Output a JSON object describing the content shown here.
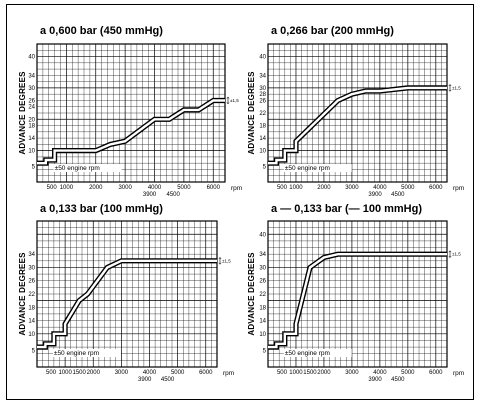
{
  "chart_data": [
    {
      "type": "line",
      "title": "a 0,600 bar (450 mmHg)",
      "ylabel": "ADVANCE DEGREES",
      "xlabel": "rpm",
      "y_ticks": [
        "5",
        "10",
        "14",
        "18",
        "20",
        "24",
        "26",
        "30",
        "34",
        "40"
      ],
      "x_ticks": [
        "500",
        "1000",
        "2000",
        "3000",
        "4000",
        "5000",
        "6000"
      ],
      "x_subticks": [
        "3900",
        "4500"
      ],
      "note": "±50 engine rpm",
      "tolerance": "±1,5",
      "xlim": [
        0,
        6400
      ],
      "ylim": [
        0,
        44
      ],
      "x": [
        0,
        300,
        300,
        600,
        600,
        1000,
        2000,
        2500,
        3000,
        4000,
        4500,
        5000,
        5500,
        6000,
        6400
      ],
      "y": [
        6,
        6,
        7,
        7,
        10,
        10,
        10,
        12,
        13,
        20,
        20,
        23,
        23,
        26,
        26
      ]
    },
    {
      "type": "line",
      "title": "a 0,266 bar (200 mmHg)",
      "ylabel": "ADVANCE DEGREES",
      "xlabel": "rpm",
      "y_ticks": [
        "5",
        "10",
        "14",
        "18",
        "22",
        "26",
        "28",
        "30",
        "34",
        "40"
      ],
      "x_ticks": [
        "500",
        "1000",
        "2000",
        "3000",
        "4000",
        "5000",
        "6000"
      ],
      "x_subticks": [
        "3900",
        "4500"
      ],
      "note": "±50 engine rpm",
      "tolerance": "±1,5",
      "xlim": [
        0,
        6400
      ],
      "ylim": [
        0,
        44
      ],
      "x": [
        0,
        300,
        300,
        600,
        600,
        1000,
        1000,
        2500,
        3000,
        3500,
        4000,
        5000,
        6000,
        6400
      ],
      "y": [
        6,
        6,
        7,
        7,
        10,
        10,
        13,
        26,
        28,
        29,
        29,
        30,
        30,
        30
      ]
    },
    {
      "type": "line",
      "title": "a 0,133 bar (100 mmHg)",
      "ylabel": "ADVANCE DEGREES",
      "xlabel": "rpm",
      "y_ticks": [
        "5",
        "10",
        "14",
        "18",
        "22",
        "26",
        "30",
        "34"
      ],
      "x_ticks": [
        "500",
        "1000",
        "1500",
        "2000",
        "3000",
        "4000",
        "5000",
        "6000"
      ],
      "x_subticks": [
        "3900",
        "4500"
      ],
      "note": "±50 engine rpm",
      "tolerance": "±1,5",
      "xlim": [
        0,
        6400
      ],
      "ylim": [
        0,
        44
      ],
      "x": [
        0,
        300,
        300,
        600,
        600,
        1000,
        1000,
        1500,
        1800,
        2500,
        3000,
        4000,
        5000,
        6000,
        6400
      ],
      "y": [
        6,
        6,
        7,
        7,
        10,
        10,
        13,
        20,
        22,
        30,
        32,
        32,
        32,
        32,
        32
      ]
    },
    {
      "type": "line",
      "title": "a — 0,133 bar (— 100 mmHg)",
      "ylabel": "ADVANCE DEGREES",
      "xlabel": "rpm",
      "y_ticks": [
        "5",
        "10",
        "14",
        "18",
        "22",
        "26",
        "30",
        "34",
        "40"
      ],
      "x_ticks": [
        "500",
        "1000",
        "1500",
        "2000",
        "3000",
        "4000",
        "5000",
        "6000"
      ],
      "x_subticks": [
        "3900",
        "4500"
      ],
      "note": "±50 engine rpm",
      "tolerance": "±1,5",
      "xlim": [
        0,
        6400
      ],
      "ylim": [
        0,
        44
      ],
      "x": [
        0,
        300,
        300,
        600,
        600,
        1000,
        1000,
        1500,
        2000,
        2500,
        3000,
        4000,
        5000,
        6000,
        6400
      ],
      "y": [
        6,
        6,
        7,
        7,
        10,
        10,
        13,
        30,
        33,
        34,
        34,
        34,
        34,
        34,
        34
      ]
    }
  ]
}
